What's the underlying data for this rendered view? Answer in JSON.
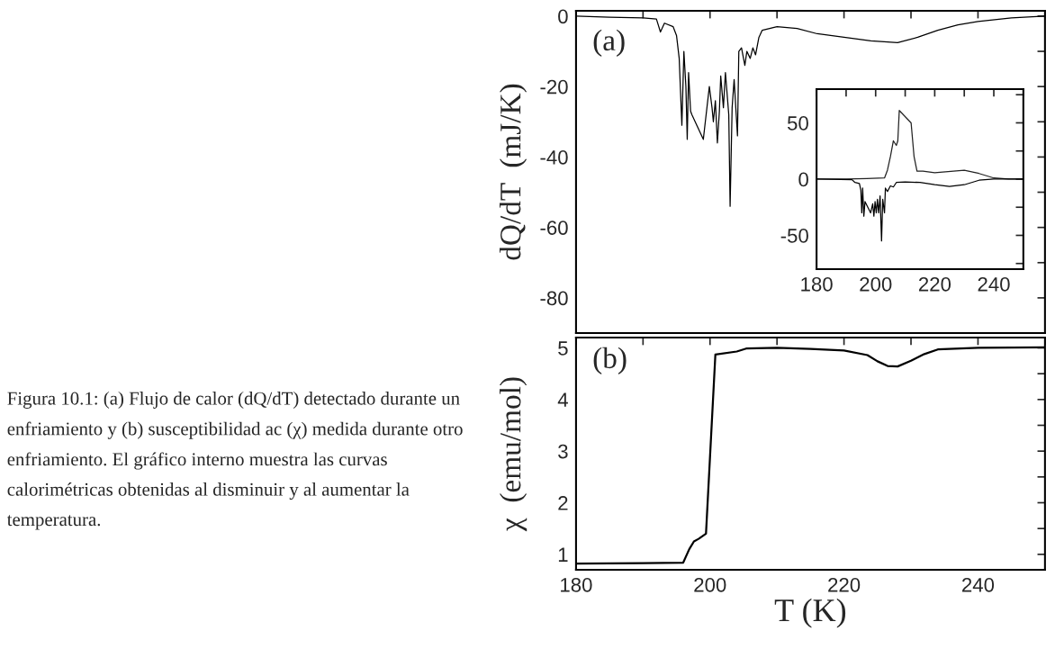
{
  "chart_data": [
    {
      "type": "line",
      "ylabel": "dQ/dT  (mJ/K)",
      "annotations": [
        "(a)"
      ],
      "tick_labels": "y",
      "xlim": [
        180,
        250
      ],
      "ylim": [
        -90,
        1.5
      ],
      "xticks": [
        180,
        {
          "value": 190,
          "label": null
        },
        200,
        {
          "value": 210,
          "label": null
        },
        220,
        {
          "value": 230,
          "label": null
        },
        240,
        {
          "value": 250,
          "label": null
        }
      ],
      "yticks": [
        0,
        {
          "value": -10,
          "label": null
        },
        -20,
        {
          "value": -30,
          "label": null
        },
        -40,
        {
          "value": -50,
          "label": null
        },
        -60,
        {
          "value": -70,
          "label": null
        },
        -80
      ],
      "x": [
        180,
        185,
        190,
        192,
        192.6,
        193.2,
        194.5,
        195,
        195.4,
        195.8,
        196.1,
        196.4,
        196.6,
        196.8,
        197.1,
        197.3,
        197.55,
        198.9,
        199.0,
        199.3,
        199.9,
        200.3,
        200.5,
        200.8,
        201.1,
        201.4,
        201.6,
        202,
        202.3,
        202.8,
        203,
        203.3,
        203.6,
        204.1,
        204.3,
        204.7,
        205.2,
        205.5,
        206,
        206.4,
        206.8,
        207.3,
        207.8,
        210,
        213,
        216,
        220,
        224,
        228,
        231,
        234,
        237,
        240,
        245,
        250
      ],
      "series": [
        {
          "color": "#000000",
          "values": [
            0,
            -0.3,
            -0.5,
            -0.8,
            -4.5,
            -2,
            -3,
            -5.5,
            -12,
            -31,
            -10,
            -20,
            -35,
            -16,
            -27,
            -28,
            null,
            null,
            -35,
            -30,
            -20,
            -26,
            -30,
            -24,
            -36,
            -27,
            -17,
            -26,
            -16,
            -28,
            -54,
            -26,
            -18,
            -34,
            -10,
            -9,
            -14,
            -10,
            -12,
            -9,
            -11,
            -6,
            -4,
            -3,
            -3.5,
            -5,
            -6,
            -7,
            -7.5,
            -6,
            -4,
            -2.5,
            -1.5,
            -0.5,
            0
          ]
        }
      ]
    },
    {
      "type": "line",
      "xlim": [
        180,
        250
      ],
      "ylim": [
        -80,
        80
      ],
      "xticks": [
        180,
        {
          "value": 190,
          "label": null
        },
        200,
        {
          "value": 210,
          "label": null
        },
        220,
        {
          "value": 230,
          "label": null
        },
        240,
        {
          "value": 250,
          "label": null
        }
      ],
      "yticks": [
        {
          "value": -75,
          "label": null
        },
        -50,
        {
          "value": -25,
          "label": null
        },
        0,
        {
          "value": 25,
          "label": null
        },
        50,
        {
          "value": 75,
          "label": null
        }
      ],
      "series": [
        {
          "color": "#222222",
          "x": [
            180,
            190,
            197,
            203,
            204,
            205,
            206,
            207,
            207.5,
            208,
            208.5,
            211.4,
            212,
            213,
            214,
            216,
            220,
            230,
            235,
            240,
            245,
            250
          ],
          "values": [
            0,
            0,
            0.5,
            1,
            8,
            20,
            34,
            30,
            34,
            61,
            null,
            null,
            50,
            20,
            7,
            7,
            5.6,
            7.8,
            5,
            1,
            0,
            0
          ]
        },
        {
          "color": "#000000",
          "x": [
            180,
            192,
            193,
            194.5,
            195,
            195.3,
            195.6,
            196,
            196.4,
            196.9,
            198.1,
            198.3,
            199,
            199.4,
            199.8,
            200.2,
            200.6,
            201,
            201.5,
            202,
            202.4,
            203,
            203.3,
            204,
            205,
            206,
            207,
            210,
            215,
            220,
            225,
            230,
            235,
            240,
            250
          ],
          "values": [
            0,
            -0.5,
            -3,
            -4,
            -10,
            -30,
            -8,
            -33,
            -20,
            null,
            null,
            -30,
            -22,
            -33,
            -20,
            -30,
            -18,
            -30,
            -15,
            -55,
            -18,
            -30,
            -8,
            -11,
            -6,
            -7,
            -3,
            -2.5,
            -3,
            -5,
            -6.5,
            -5,
            -1,
            0,
            0
          ]
        }
      ]
    },
    {
      "type": "line",
      "ylabel": "χ  (emu/mol)",
      "xlabel": "T (K)",
      "annotations": [
        "(b)"
      ],
      "xlim": [
        180,
        250
      ],
      "ylim": [
        0.7,
        5.2
      ],
      "xticks": [
        180,
        {
          "value": 190,
          "label": null
        },
        200,
        {
          "value": 210,
          "label": null
        },
        220,
        {
          "value": 230,
          "label": null
        },
        240,
        {
          "value": 250,
          "label": null
        }
      ],
      "yticks": [
        1,
        {
          "value": 1.5,
          "label": null
        },
        2,
        {
          "value": 2.5,
          "label": null
        },
        3,
        {
          "value": 3.5,
          "label": null
        },
        4,
        {
          "value": 4.5,
          "label": null
        },
        5
      ],
      "x": [
        180,
        190,
        196,
        196.9,
        197.6,
        198.3,
        199.4,
        200.8,
        204,
        205.5,
        210,
        215,
        220,
        223.5,
        225,
        226.5,
        228,
        230,
        232,
        234,
        240,
        250
      ],
      "series": [
        {
          "color": "#000000",
          "values": [
            0.82,
            0.83,
            0.84,
            1.1,
            1.25,
            1.3,
            1.4,
            4.87,
            4.93,
            4.99,
            5.0,
            4.98,
            4.95,
            4.86,
            4.74,
            4.65,
            4.64,
            4.75,
            4.88,
            4.97,
            5.0,
            5.01
          ]
        }
      ]
    },
    {
      "type": "other",
      "annotations": [
        "Figura 10.1: (a) Flujo de calor (dQ/dT) detectado durante un enfriamiento y (b) susceptibilidad ac (χ) medida durante otro enfriamiento. El gráfico interno muestra las curvas calorimétricas obtenidas al disminuir y al aumentar la temperatura."
      ]
    }
  ]
}
